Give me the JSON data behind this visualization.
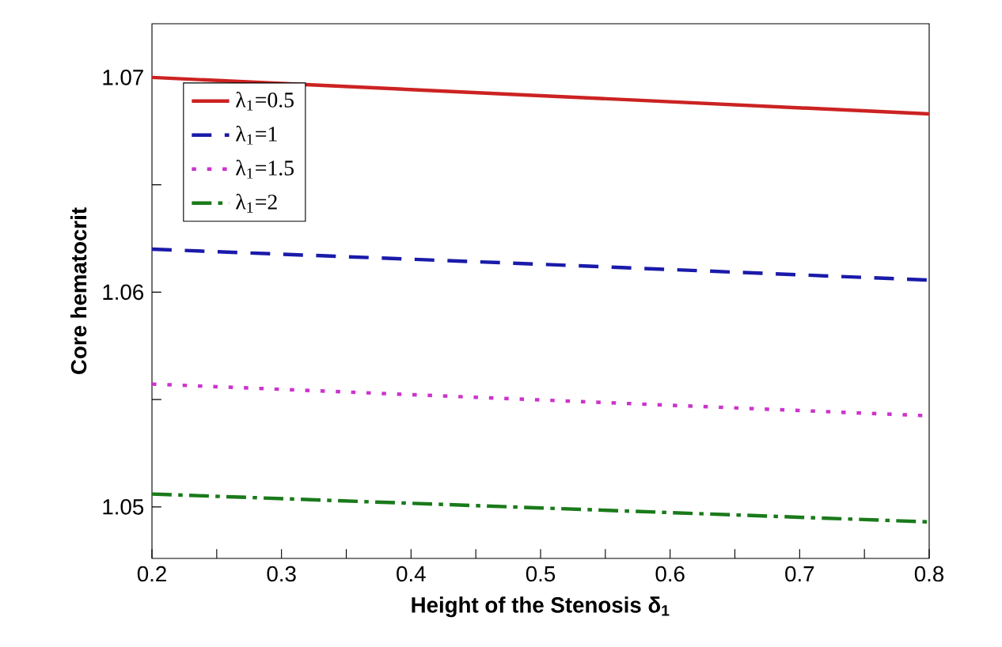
{
  "chart_data": {
    "type": "line",
    "xlabel": "Height of the Stenosis δ$_{1}$",
    "ylabel": "Core hematocrit",
    "x": [
      0.2,
      0.5,
      0.8
    ],
    "xlim": [
      0.2,
      0.8
    ],
    "ylim": [
      1.0476,
      1.0725
    ],
    "xticks": [
      0.2,
      {
        "value": 0.25,
        "label": null
      },
      0.3,
      {
        "value": 0.35,
        "label": null
      },
      0.4,
      {
        "value": 0.45,
        "label": null
      },
      0.5,
      {
        "value": 0.55,
        "label": null
      },
      0.6,
      {
        "value": 0.65,
        "label": null
      },
      0.7,
      {
        "value": 0.75,
        "label": null
      },
      0.8
    ],
    "yticks": [
      1.05,
      {
        "value": 1.055,
        "label": null
      },
      1.06,
      {
        "value": 1.065,
        "label": null
      },
      1.07
    ],
    "legend": "top left",
    "grid": false,
    "series": [
      {
        "name": "λ$_{1}$=0.5",
        "color": "#cc2222",
        "line_style": "solid",
        "values": [
          1.07,
          1.06915,
          1.0683
        ]
      },
      {
        "name": "λ$_{1}$=1",
        "color": "#1a1aaa",
        "line_style": "dashed",
        "values": [
          1.062,
          1.0613,
          1.06056
        ]
      },
      {
        "name": "λ$_{1}$=1.5",
        "color": "#cc33cc",
        "line_style": "dotted",
        "values": [
          1.05572,
          1.05498,
          1.05424
        ]
      },
      {
        "name": "λ$_{1}$=2",
        "color": "#1a7a1a",
        "line_style": "dashdot",
        "values": [
          1.0506,
          1.04995,
          1.0493
        ]
      }
    ]
  }
}
